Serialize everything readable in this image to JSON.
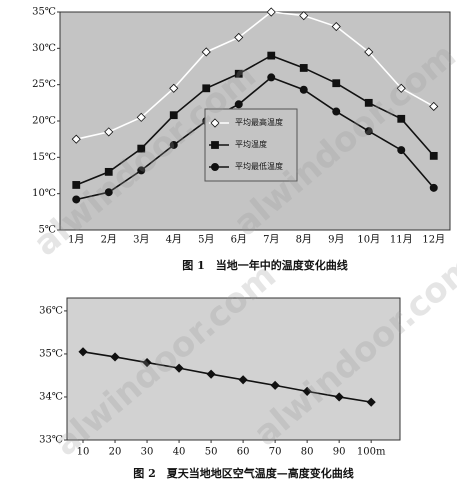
{
  "chart_data": [
    {
      "type": "line",
      "caption": "图 1　当地一年中的温度变化曲线",
      "categories": [
        "1月",
        "2月",
        "3月",
        "4月",
        "5月",
        "6月",
        "7月",
        "8月",
        "9月",
        "10月",
        "11月",
        "12月"
      ],
      "ylim": [
        5,
        35
      ],
      "yticks": [
        {
          "value": 5,
          "label": "5℃"
        },
        {
          "value": 10,
          "label": "10℃"
        },
        {
          "value": 15,
          "label": "15℃"
        },
        {
          "value": 20,
          "label": "20℃"
        },
        {
          "value": 25,
          "label": "25℃"
        },
        {
          "value": 30,
          "label": "30℃"
        },
        {
          "value": 35,
          "label": "35℃"
        }
      ],
      "background": "#c4c4c4",
      "legend": "center",
      "series": [
        {
          "name": "平均最高温度",
          "color": "#ffffff",
          "marker": "diamond",
          "values": [
            17.5,
            18.5,
            20.5,
            24.5,
            29.5,
            31.5,
            35,
            34.5,
            33,
            29.5,
            24.5,
            22
          ]
        },
        {
          "name": "平均温度",
          "color": "#111111",
          "marker": "square",
          "values": [
            11.2,
            13,
            16.2,
            20.8,
            24.5,
            26.5,
            29,
            27.3,
            25.2,
            22.5,
            20.3,
            15.2
          ]
        },
        {
          "name": "平均最低温度",
          "color": "#111111",
          "marker": "circle",
          "values": [
            9.2,
            10.2,
            13.2,
            16.7,
            20,
            22.3,
            26,
            24.3,
            21.3,
            18.6,
            16,
            10.8
          ]
        }
      ]
    },
    {
      "type": "line",
      "caption": "图 2　夏天当地地区空气温度—高度变化曲线",
      "xlim": [
        5,
        109
      ],
      "xticks": [
        10,
        20,
        30,
        40,
        50,
        60,
        70,
        80,
        90,
        {
          "value": 100,
          "label": "100m"
        }
      ],
      "ylim": [
        33,
        36.3
      ],
      "yticks": [
        {
          "value": 33,
          "label": "33℃"
        },
        {
          "value": 34,
          "label": "34℃"
        },
        {
          "value": 35,
          "label": "35℃"
        },
        {
          "value": 36,
          "label": "36℃"
        }
      ],
      "background": "#d2d2d2",
      "x": [
        10,
        20,
        30,
        40,
        50,
        60,
        70,
        80,
        90,
        100
      ],
      "series": [
        {
          "color": "#111111",
          "marker": "diamond",
          "values": [
            35.05,
            34.93,
            34.8,
            34.67,
            34.53,
            34.4,
            34.27,
            34.13,
            34.0,
            33.88
          ]
        }
      ]
    }
  ],
  "watermark": "alwindoor.com"
}
